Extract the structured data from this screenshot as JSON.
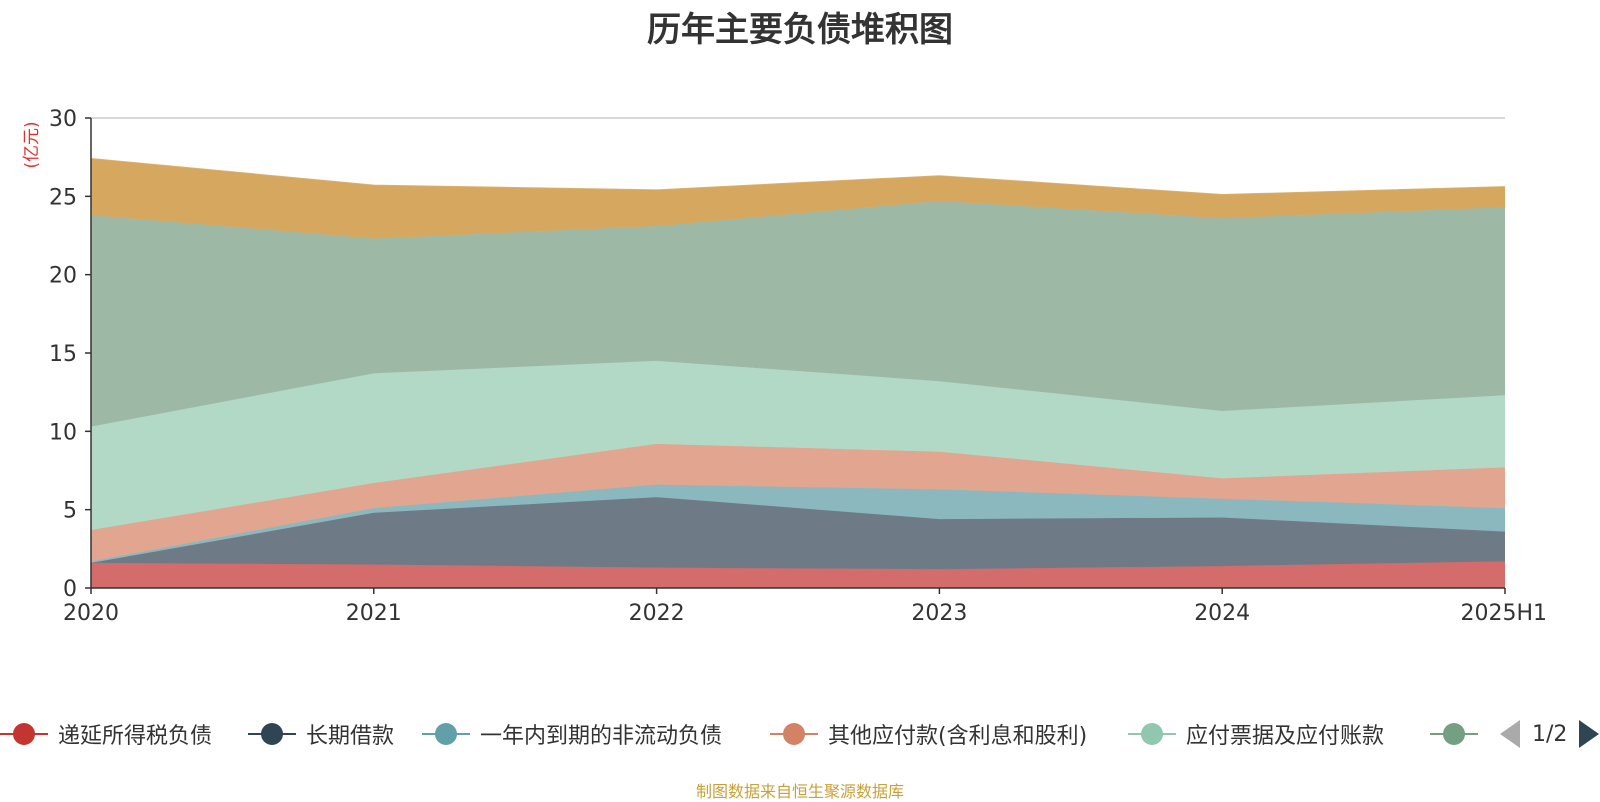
{
  "chart_data": {
    "type": "area",
    "title": "历年主要负债堆积图",
    "ylabel": "(亿元)",
    "xlabel": "",
    "ylim": [
      0,
      30
    ],
    "yticks": [
      0,
      5,
      10,
      15,
      20,
      25,
      30
    ],
    "categories": [
      "2020",
      "2021",
      "2022",
      "2023",
      "2024",
      "2025H1"
    ],
    "stacked": true,
    "grid": true,
    "series": [
      {
        "name": "递延所得税负债",
        "color": "#d36c6a",
        "values": [
          1.6,
          1.5,
          1.3,
          1.2,
          1.4,
          1.7
        ]
      },
      {
        "name": "长期借款",
        "color": "#6e7b87",
        "values": [
          0.0,
          3.3,
          4.5,
          3.2,
          3.1,
          1.9
        ]
      },
      {
        "name": "一年内到期的非流动负债",
        "color": "#8bb8be",
        "values": [
          0.1,
          0.3,
          0.8,
          1.9,
          1.2,
          1.5
        ]
      },
      {
        "name": "其他应付款(含利息和股利)",
        "color": "#e1a590",
        "values": [
          2.0,
          1.6,
          2.6,
          2.4,
          1.3,
          2.6
        ]
      },
      {
        "name": "应付票据及应付账款",
        "color": "#b2d8c6",
        "values": [
          6.6,
          7.0,
          5.3,
          4.5,
          4.3,
          4.6
        ]
      },
      {
        "name": "",
        "color": "#9db9a6",
        "values": [
          13.5,
          8.6,
          8.6,
          11.5,
          12.3,
          12.0
        ]
      },
      {
        "name": "",
        "color": "#d6a85f",
        "values": [
          3.6,
          3.4,
          2.3,
          1.6,
          1.5,
          1.3
        ]
      }
    ]
  },
  "legend": {
    "items": [
      {
        "label": "递延所得税负债",
        "color": "#c23531",
        "icon": "circle-line-icon"
      },
      {
        "label": "长期借款",
        "color": "#2f4554",
        "icon": "circle-line-icon"
      },
      {
        "label": "一年内到期的非流动负债",
        "color": "#61a0a8",
        "icon": "circle-line-icon"
      },
      {
        "label": "其他应付款(含利息和股利)",
        "color": "#d48265",
        "icon": "circle-line-icon"
      },
      {
        "label": "应付票据及应付账款",
        "color": "#91c7ae",
        "icon": "circle-line-icon"
      },
      {
        "label": "",
        "color": "#749f83",
        "icon": "circle-line-icon"
      }
    ],
    "page_text": "1/2"
  },
  "footer": {
    "source": "制图数据来自恒生聚源数据库"
  }
}
